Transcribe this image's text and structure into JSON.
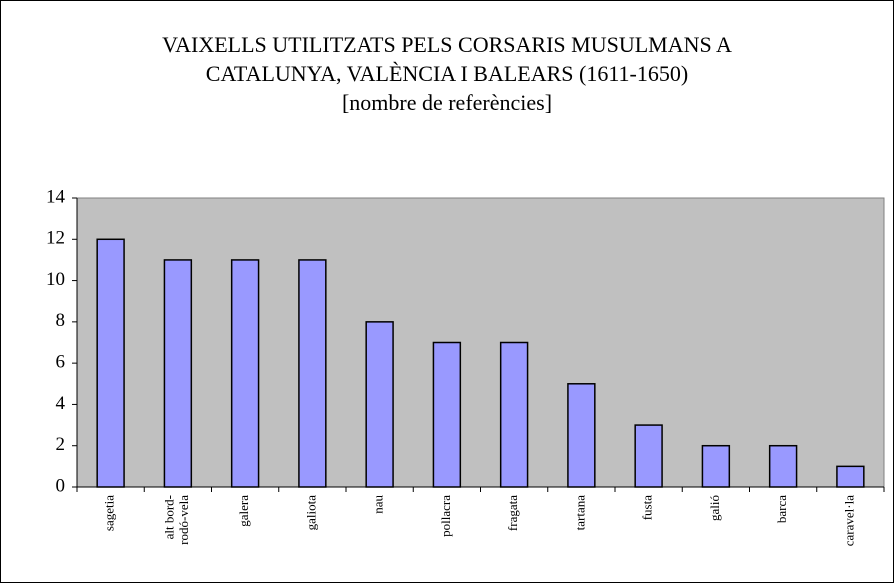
{
  "chart_data": {
    "type": "bar",
    "title": [
      "VAIXELLS UTILITZATS PELS CORSARIS MUSULMANS A",
      "CATALUNYA, VALÈNCIA I BALEARS (1611-1650)",
      "[nombre de referències]"
    ],
    "categories": [
      "sagetia",
      "alt bord-\nrodó-vela",
      "galera",
      "galiota",
      "nau",
      "pollacra",
      "fragata",
      "tartana",
      "fusta",
      "galió",
      "barca",
      "caravel·la"
    ],
    "values": [
      12,
      11,
      11,
      11,
      8,
      7,
      7,
      5,
      3,
      2,
      2,
      1
    ],
    "color": "#9999ff",
    "ylim": [
      0,
      14
    ],
    "yticks": [
      0,
      2,
      4,
      6,
      8,
      10,
      12,
      14
    ],
    "grid": false,
    "plot_background": "#c0c0c0"
  }
}
